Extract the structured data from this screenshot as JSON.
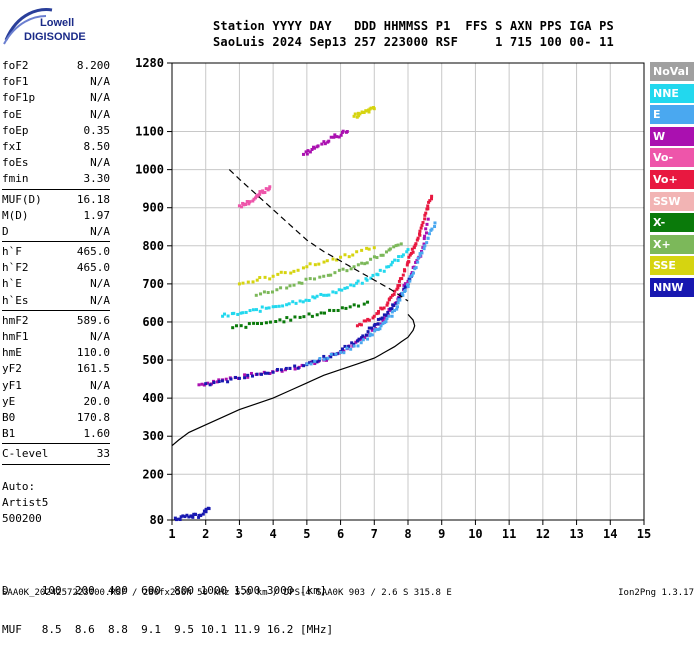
{
  "logo": {
    "line1": "Lowell",
    "line2": "DIGISONDE"
  },
  "header": {
    "row1": "Station YYYY DAY   DDD HHMMSS P1  FFS S AXN PPS IGA PS",
    "row2": "SaoLuis 2024 Sep13 257 223000 RSF     1 715 100 00- 11"
  },
  "params_group1": [
    {
      "name": "foF2",
      "value": "8.200"
    },
    {
      "name": "foF1",
      "value": "N/A"
    },
    {
      "name": "foF1p",
      "value": "N/A"
    },
    {
      "name": "foE",
      "value": "N/A"
    },
    {
      "name": "foEp",
      "value": "0.35"
    },
    {
      "name": "fxI",
      "value": "8.50"
    },
    {
      "name": "foEs",
      "value": "N/A"
    },
    {
      "name": "fmin",
      "value": "3.30"
    }
  ],
  "params_group2": [
    {
      "name": "MUF(D)",
      "value": "16.18"
    },
    {
      "name": "M(D)",
      "value": "1.97"
    },
    {
      "name": "D",
      "value": "N/A"
    }
  ],
  "params_group3": [
    {
      "name": "h`F",
      "value": "465.0"
    },
    {
      "name": "h`F2",
      "value": "465.0"
    },
    {
      "name": "h`E",
      "value": "N/A"
    },
    {
      "name": "h`Es",
      "value": "N/A"
    }
  ],
  "params_group4": [
    {
      "name": "hmF2",
      "value": "589.6"
    },
    {
      "name": "hmF1",
      "value": "N/A"
    },
    {
      "name": "hmE",
      "value": "110.0"
    },
    {
      "name": "yF2",
      "value": "161.5"
    },
    {
      "name": "yF1",
      "value": "N/A"
    },
    {
      "name": "yE",
      "value": "20.0"
    },
    {
      "name": "B0",
      "value": "170.8"
    },
    {
      "name": "B1",
      "value": "1.60"
    }
  ],
  "params_group5": [
    {
      "name": "C-level",
      "value": "33"
    }
  ],
  "auto": {
    "line1": "Auto:",
    "line2": "Artist5",
    "line3": "500200"
  },
  "legend": [
    {
      "label": "NoVal",
      "color": "#a0a0a0"
    },
    {
      "label": "NNE",
      "color": "#22d8ee"
    },
    {
      "label": "E",
      "color": "#4aa8f0"
    },
    {
      "label": "W",
      "color": "#aa10b0"
    },
    {
      "label": "Vo-",
      "color": "#ee55aa"
    },
    {
      "label": "Vo+",
      "color": "#e81840"
    },
    {
      "label": "SSW",
      "color": "#f2b4b4"
    },
    {
      "label": "X-",
      "color": "#0a7a0a"
    },
    {
      "label": "X+",
      "color": "#7cb85a"
    },
    {
      "label": "SSE",
      "color": "#d6d410"
    },
    {
      "label": "NNW",
      "color": "#1818b0"
    }
  ],
  "dmuf": {
    "d_row": "D     100  200  400  600  800 1000 1500 3000 [km]",
    "muf_row": "MUF   8.5  8.6  8.8  9.1  9.5 10.1 11.9 16.2 [MHz]"
  },
  "footer": "SAA0K_2024257223000.RSF / 280fx256h 50 kHz 5.0 km / DPS-4 SAA0K 903 / 2.6 S 315.8 E",
  "version": "Ion2Png 1.3.17",
  "chart_data": {
    "type": "scatter",
    "xlim": [
      1,
      15
    ],
    "ylim": [
      80,
      1280
    ],
    "x_ticks": [
      1,
      2,
      3,
      4,
      5,
      6,
      7,
      8,
      9,
      10,
      11,
      12,
      13,
      14,
      15
    ],
    "y_ticks": [
      80,
      200,
      300,
      400,
      500,
      600,
      700,
      800,
      900,
      1000,
      1100,
      1280
    ],
    "grid": true,
    "legend_position": "right",
    "profile": {
      "x": [
        1.0,
        1.2,
        1.5,
        2.0,
        2.5,
        3.0,
        3.5,
        4.0,
        4.5,
        5.0,
        5.5,
        6.0,
        6.5,
        7.0,
        7.3,
        7.6,
        7.8,
        8.0,
        8.15,
        8.2,
        8.15,
        8.0
      ],
      "y": [
        275,
        290,
        310,
        330,
        350,
        370,
        385,
        400,
        420,
        440,
        460,
        475,
        490,
        505,
        520,
        535,
        548,
        560,
        578,
        590,
        605,
        620
      ]
    },
    "muf_curve": {
      "x": [
        2.7,
        3.0,
        3.5,
        4.0,
        4.5,
        5.0,
        5.5,
        6.0,
        6.5,
        7.0,
        7.5,
        8.0
      ],
      "y": [
        1000,
        975,
        935,
        895,
        855,
        815,
        785,
        760,
        735,
        710,
        685,
        655
      ]
    },
    "traces": [
      {
        "color": "W",
        "x": [
          1.8,
          2.5,
          3.5,
          4.5,
          5.5,
          6.2,
          6.8,
          7.3,
          7.7,
          8.1,
          8.4,
          8.6
        ],
        "y": [
          435,
          448,
          462,
          478,
          500,
          530,
          565,
          610,
          660,
          725,
          785,
          870
        ]
      },
      {
        "color": "NNW",
        "x": [
          2.0,
          3.0,
          4.0,
          5.0,
          5.8,
          6.5,
          7.0,
          7.4,
          7.8,
          8.1
        ],
        "y": [
          438,
          452,
          468,
          488,
          515,
          550,
          590,
          625,
          670,
          720
        ]
      },
      {
        "color": "Vo+",
        "x": [
          6.5,
          7.0,
          7.4,
          7.7,
          7.9,
          8.1,
          8.3,
          8.5,
          8.7
        ],
        "y": [
          590,
          615,
          650,
          690,
          735,
          780,
          820,
          880,
          930
        ]
      },
      {
        "color": "E",
        "x": [
          5.0,
          6.0,
          6.8,
          7.2,
          7.6,
          7.9,
          8.2,
          8.5,
          8.8
        ],
        "y": [
          490,
          520,
          555,
          590,
          630,
          680,
          740,
          800,
          860
        ]
      },
      {
        "color": "NNE",
        "x": [
          2.5,
          3.2,
          4.0,
          4.8,
          5.5,
          6.2,
          6.9,
          7.5,
          8.0
        ],
        "y": [
          615,
          625,
          640,
          655,
          670,
          690,
          715,
          750,
          790
        ]
      },
      {
        "color": "X+",
        "x": [
          3.5,
          4.5,
          5.5,
          6.4,
          7.2,
          7.8
        ],
        "y": [
          670,
          695,
          720,
          745,
          775,
          805
        ]
      },
      {
        "color": "X-",
        "x": [
          2.8,
          3.8,
          4.8,
          5.8,
          6.8
        ],
        "y": [
          585,
          598,
          612,
          630,
          652
        ]
      },
      {
        "color": "SSE",
        "x": [
          3.0,
          4.0,
          5.0,
          6.0,
          7.0
        ],
        "y": [
          700,
          720,
          745,
          770,
          795
        ]
      },
      {
        "color": "Vo-",
        "x": [
          3.0,
          3.3,
          3.6,
          3.9
        ],
        "y": [
          905,
          915,
          935,
          955
        ]
      },
      {
        "color": "NNW",
        "x": [
          1.1,
          1.5,
          1.8,
          2.1
        ],
        "y": [
          85,
          88,
          92,
          110
        ]
      },
      {
        "color": "W",
        "x": [
          4.9,
          5.3,
          5.8,
          6.2
        ],
        "y": [
          1040,
          1060,
          1085,
          1100
        ]
      },
      {
        "color": "SSE",
        "x": [
          6.4,
          6.7,
          7.0
        ],
        "y": [
          1140,
          1150,
          1160
        ]
      }
    ]
  }
}
